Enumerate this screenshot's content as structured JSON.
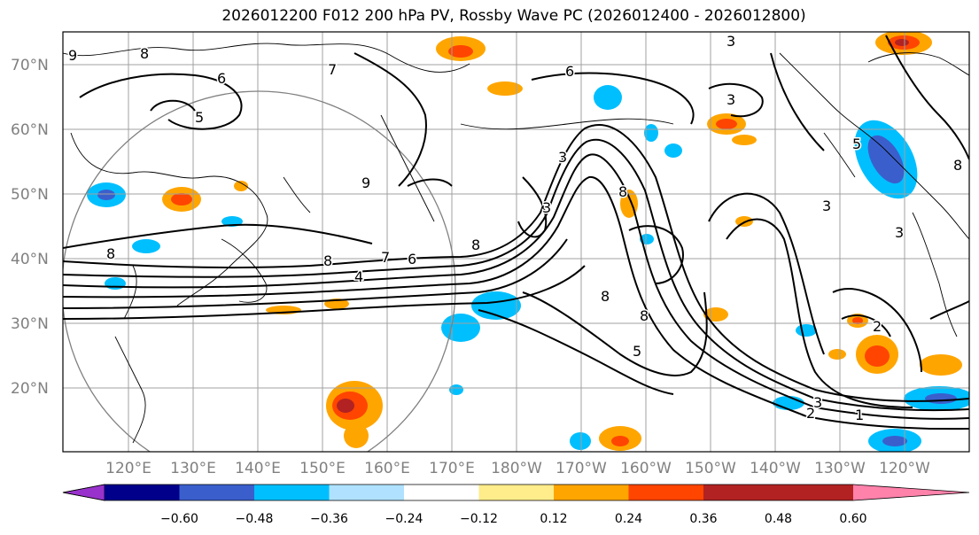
{
  "title": "2026012200 F012 200 hPa PV, Rossby Wave PC (2026012400 - 2026012800)",
  "lat_labels": [
    "70°N",
    "60°N",
    "50°N",
    "40°N",
    "30°N",
    "20°N"
  ],
  "lon_labels": [
    "120°E",
    "130°E",
    "140°E",
    "150°E",
    "160°E",
    "170°E",
    "180°W",
    "170°W",
    "160°W",
    "150°W",
    "140°W",
    "130°W",
    "120°W"
  ],
  "colorbar": {
    "ticks": [
      "−0.60",
      "−0.48",
      "−0.36",
      "−0.24",
      "−0.12",
      "0.12",
      "0.24",
      "0.36",
      "0.48",
      "0.60"
    ],
    "colors": [
      "#9932cc",
      "#00008b",
      "#3a5fcd",
      "#00bfff",
      "#b0e2ff",
      "#ffffff",
      "#ffec8b",
      "#ffa500",
      "#ff4500",
      "#b22222",
      "#ff82ab"
    ]
  },
  "contour_labels": [
    "9",
    "8",
    "7",
    "6",
    "5",
    "3",
    "8",
    "7",
    "6",
    "4",
    "8",
    "6",
    "9",
    "3",
    "3",
    "8",
    "8",
    "8",
    "8",
    "5",
    "3",
    "2",
    "1",
    "5",
    "2",
    "3",
    "8",
    "3",
    "3"
  ]
}
